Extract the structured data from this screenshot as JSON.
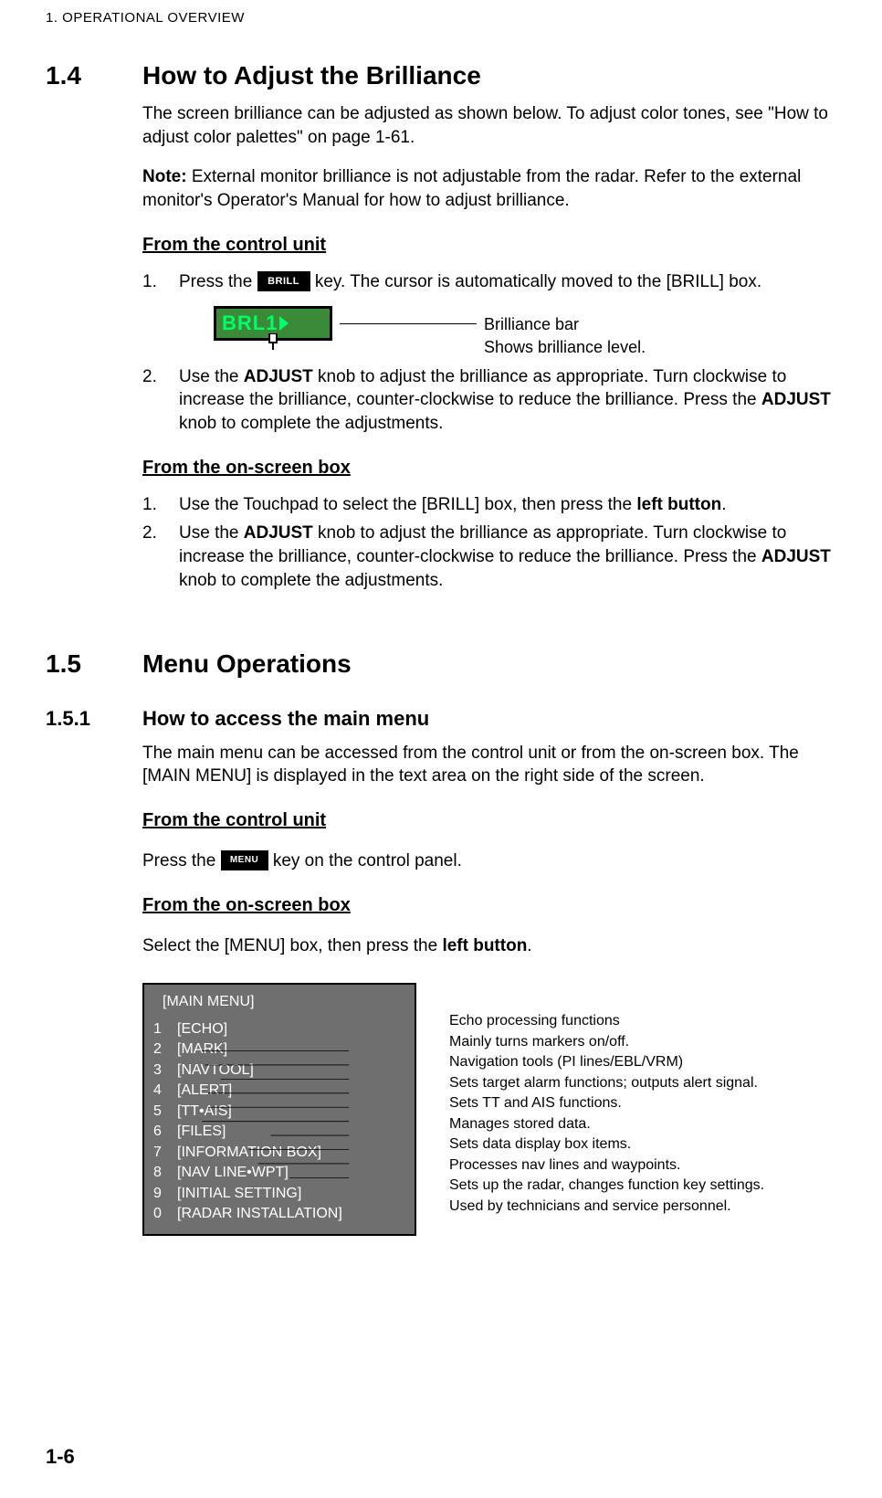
{
  "chapter": {
    "label": "1.  OPERATIONAL OVERVIEW"
  },
  "sec14": {
    "num": "1.4",
    "title": "How to Adjust the Brilliance",
    "intro": "The screen brilliance can be adjusted as shown below. To adjust color tones, see \"How to adjust color palettes\" on page 1-61.",
    "note_label": "Note:",
    "note_body": " External monitor brilliance is not adjustable from the radar. Refer to the external monitor's Operator's Manual for how to adjust brilliance.",
    "sub_control": "From the control unit",
    "step1_pre": "Press the ",
    "step1_post": " key. The cursor is automatically moved to the [BRILL] box.",
    "brill_key_label": "BRILL",
    "brill_bar_label": "BRL1",
    "brill_annot_line1": "Brilliance bar",
    "brill_annot_line2": "Shows brilliance level.",
    "step2_pre": "Use the ",
    "step2_bold1": "ADJUST",
    "step2_mid": " knob to adjust the brilliance as appropriate. Turn clockwise to increase the brilliance, counter-clockwise to reduce the brilliance. Press the ",
    "step2_bold2": "ADJUST",
    "step2_post": " knob to complete the adjustments.",
    "sub_onscreen": "From the on-screen box",
    "osc_step1_pre": "Use the Touchpad to select the [BRILL] box, then press the ",
    "osc_step1_bold": "left button",
    "osc_step1_post": "."
  },
  "sec15": {
    "num": "1.5",
    "title": "Menu Operations"
  },
  "sec151": {
    "num": "1.5.1",
    "title": "How to access the main menu",
    "intro": "The main menu can be accessed from the control unit or from the on-screen box. The [MAIN MENU] is displayed in the text area on the right side of the screen.",
    "sub_control": "From the control unit",
    "ctrl_pre": "Press the ",
    "menu_key_label": "MENU",
    "ctrl_post": " key on the control panel.",
    "sub_onscreen": "From the on-screen box",
    "osc_pre": "Select the [MENU] box, then press the ",
    "osc_bold": "left button",
    "osc_post": "."
  },
  "main_menu": {
    "header": "[MAIN MENU]",
    "items": [
      {
        "num": "1",
        "label": "[ECHO]",
        "desc": "Echo processing functions"
      },
      {
        "num": "2",
        "label": "[MARK]",
        "desc": "Mainly turns markers on/off."
      },
      {
        "num": "3",
        "label": "[NAVTOOL]",
        "desc": "Navigation tools (PI lines/EBL/VRM)"
      },
      {
        "num": "4",
        "label": "[ALERT]",
        "desc": "Sets target alarm functions; outputs alert signal."
      },
      {
        "num": "5",
        "label": "[TT•AIS]",
        "desc": "Sets TT and AIS functions."
      },
      {
        "num": "6",
        "label": "[FILES]",
        "desc": "Manages stored data."
      },
      {
        "num": "7",
        "label": "[INFORMATION BOX]",
        "desc": "Sets data display box items."
      },
      {
        "num": "8",
        "label": "[NAV LINE•WPT]",
        "desc": "Processes nav lines and waypoints."
      },
      {
        "num": "9",
        "label": "[INITIAL SETTING]",
        "desc": "Sets up the radar, changes function key settings."
      },
      {
        "num": "0",
        "label": "[RADAR INSTALLATION]",
        "desc": "Used by technicians and service personnel."
      }
    ]
  },
  "page_number": "1-6"
}
